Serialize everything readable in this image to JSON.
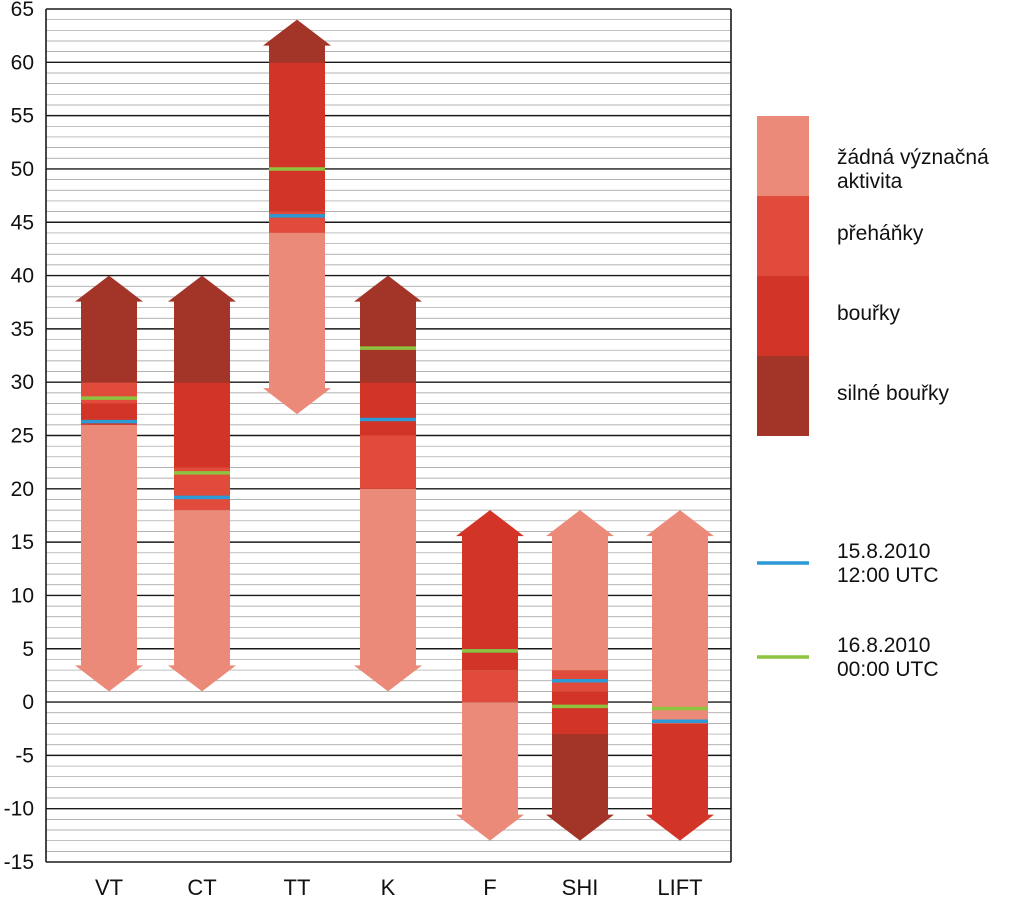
{
  "chart_data": {
    "type": "bar",
    "ylim": [
      -15,
      65
    ],
    "yticks": [
      65,
      60,
      55,
      50,
      45,
      40,
      35,
      30,
      25,
      20,
      15,
      10,
      5,
      0,
      -5,
      -10,
      -15
    ],
    "minor_grid": 1,
    "categories": [
      "VT",
      "CT",
      "TT",
      "K",
      "F",
      "SHI",
      "LIFT"
    ],
    "colors": {
      "none": "#ec8a79",
      "showers": "#e04b3c",
      "storms": "#d23527",
      "severe": "#a33428",
      "line_1": "#2b9ad6",
      "line_2": "#8dc33f"
    },
    "indices": [
      {
        "name": "VT",
        "up": true,
        "segments": [
          {
            "from": 1,
            "to": 26,
            "level": "none"
          },
          {
            "from": 26,
            "to": 28,
            "level": "storms"
          },
          {
            "from": 28,
            "to": 30,
            "level": "showers"
          },
          {
            "from": 30,
            "to": 40,
            "level": "severe"
          }
        ],
        "value_1": 26.3,
        "value_2": 28.5
      },
      {
        "name": "CT",
        "up": true,
        "segments": [
          {
            "from": 1,
            "to": 18,
            "level": "none"
          },
          {
            "from": 18,
            "to": 22,
            "level": "showers"
          },
          {
            "from": 22,
            "to": 30,
            "level": "storms"
          },
          {
            "from": 30,
            "to": 40,
            "level": "severe"
          }
        ],
        "value_1": 19.2,
        "value_2": 21.5
      },
      {
        "name": "TT",
        "up": true,
        "segments": [
          {
            "from": 27,
            "to": 44,
            "level": "none"
          },
          {
            "from": 44,
            "to": 46,
            "level": "showers"
          },
          {
            "from": 46,
            "to": 60,
            "level": "storms"
          },
          {
            "from": 60,
            "to": 64,
            "level": "severe"
          }
        ],
        "value_1": 45.6,
        "value_2": 50
      },
      {
        "name": "K",
        "up": true,
        "segments": [
          {
            "from": 1,
            "to": 20,
            "level": "none"
          },
          {
            "from": 20,
            "to": 25,
            "level": "showers"
          },
          {
            "from": 25,
            "to": 30,
            "level": "storms"
          },
          {
            "from": 30,
            "to": 40,
            "level": "severe"
          }
        ],
        "value_1": 26.5,
        "value_2": 33.2
      },
      {
        "name": "F",
        "up": true,
        "segments": [
          {
            "from": -13,
            "to": 0,
            "level": "none"
          },
          {
            "from": 0,
            "to": 3,
            "level": "showers"
          },
          {
            "from": 3,
            "to": 18,
            "level": "storms"
          }
        ],
        "value_1": 4.8,
        "value_2": 4.8
      },
      {
        "name": "SHI",
        "up": false,
        "segments": [
          {
            "from": -13,
            "to": -3,
            "level": "severe"
          },
          {
            "from": -3,
            "to": 1,
            "level": "storms"
          },
          {
            "from": 1,
            "to": 3,
            "level": "showers"
          },
          {
            "from": 3,
            "to": 18,
            "level": "none"
          }
        ],
        "value_1": 2,
        "value_2": -0.4
      },
      {
        "name": "LIFT",
        "up": false,
        "segments": [
          {
            "from": -13,
            "to": -2,
            "level": "storms"
          },
          {
            "from": -2,
            "to": 18,
            "level": "none"
          }
        ],
        "value_1": -1.8,
        "value_2": -0.6
      }
    ],
    "legend": {
      "levels": [
        {
          "key": "none",
          "label_1": "žádná význačná",
          "label_2": "aktivita"
        },
        {
          "key": "showers",
          "label_1": "přeháňky"
        },
        {
          "key": "storms",
          "label_1": "bouřky"
        },
        {
          "key": "severe",
          "label_1": "silné bouřky"
        }
      ],
      "lines": [
        {
          "key": "line_1",
          "label_1": "15.8.2010",
          "label_2": "12:00 UTC"
        },
        {
          "key": "line_2",
          "label_1": "16.8.2010",
          "label_2": "00:00 UTC"
        }
      ]
    }
  }
}
